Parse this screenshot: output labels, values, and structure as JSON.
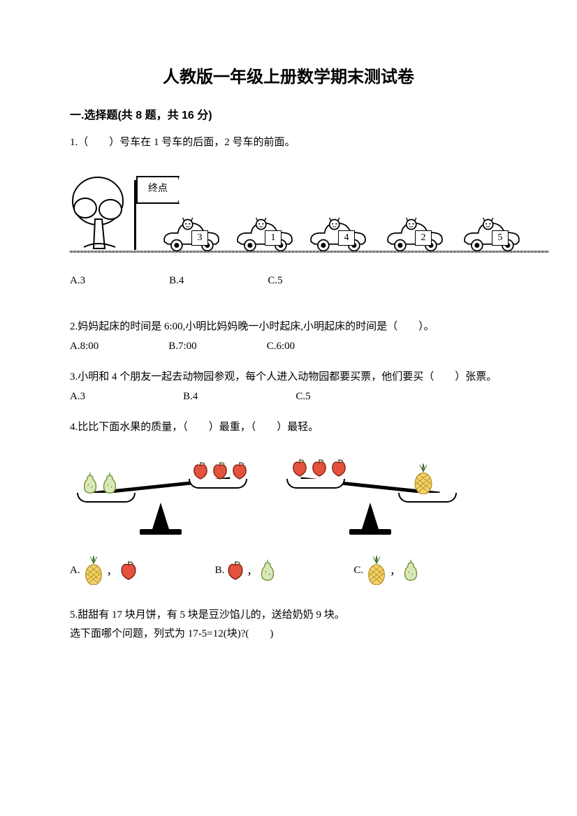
{
  "title": "人教版一年级上册数学期末测试卷",
  "section1": {
    "heading": "一.选择题(共 8 题，共 16 分)",
    "q1": {
      "text": "1.（　　）号车在 1 号车的后面，2 号车的前面。",
      "flag_label": "终点",
      "cars": [
        "3",
        "1",
        "4",
        "2",
        "5"
      ],
      "opts": {
        "A": "A.3",
        "B": "B.4",
        "C": "C.5"
      }
    },
    "q2": {
      "text": "2.妈妈起床的时间是 6:00,小明比妈妈晚一小时起床,小明起床的时间是（　　）。",
      "opts": {
        "A": "A.8:00",
        "B": "B.7:00",
        "C": "C.6:00"
      }
    },
    "q3": {
      "text": "3.小明和 4 个朋友一起去动物园参观，每个人进入动物园都要买票，他们要买（　　）张票。",
      "opts": {
        "A": "A.3",
        "B": "B.4",
        "C": "C.5"
      }
    },
    "q4": {
      "text": "4.比比下面水果的质量，（　　）最重，（　　）最轻。",
      "balance_left": {
        "tilt_deg": -6,
        "left_fruit": "pear",
        "left_count": 2,
        "right_fruit": "apple",
        "right_count": 3
      },
      "balance_right": {
        "tilt_deg": 6,
        "left_fruit": "apple",
        "left_count": 3,
        "right_fruit": "pineapple",
        "right_count": 1
      },
      "opts": {
        "A": {
          "label": "A.",
          "first": "pineapple",
          "sep": "，",
          "second": "apple"
        },
        "B": {
          "label": "B.",
          "first": "apple",
          "sep": "，",
          "second": "pear"
        },
        "C": {
          "label": "C.",
          "first": "pineapple",
          "sep": "，",
          "second": "pear"
        }
      }
    },
    "q5": {
      "line1": "5.甜甜有 17 块月饼，有 5 块是豆沙馅儿的，送给奶奶 9 块。",
      "line2": "选下面哪个问题，列式为 17-5=12(块)?(　　)"
    }
  },
  "colors": {
    "pear_fill": "#d9e8b8",
    "pear_stroke": "#6a8a2a",
    "apple_fill": "#e2523c",
    "apple_stroke": "#7a1f12",
    "pineapple_body": "#f2d26b",
    "pineapple_stroke": "#b08b1e",
    "pineapple_leaf": "#5a8a3a"
  }
}
